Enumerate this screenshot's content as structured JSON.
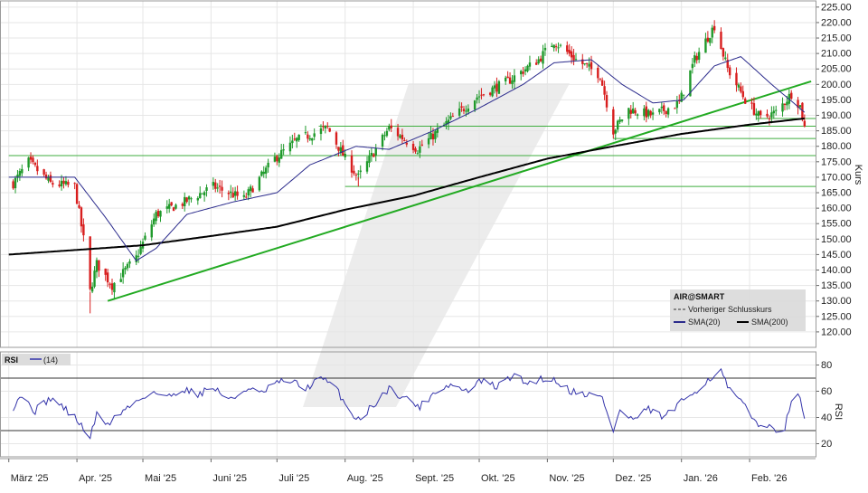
{
  "chart_data": [
    {
      "type": "candlestick",
      "title": "",
      "ylabel": "Kurs",
      "ylim": [
        115,
        227
      ],
      "y_ticks": [
        120,
        125,
        130,
        135,
        140,
        145,
        150,
        155,
        160,
        165,
        170,
        175,
        180,
        185,
        190,
        195,
        200,
        205,
        210,
        215,
        220,
        225
      ],
      "y_tick_labels": [
        "120.00",
        "125.00",
        "130.00",
        "135.00",
        "140.00",
        "145.00",
        "150.00",
        "155.00",
        "160.00",
        "165.00",
        "170.00",
        "175.00",
        "180.00",
        "185.00",
        "190.00",
        "195.00",
        "200.00",
        "205.00",
        "210.00",
        "215.00",
        "220.00",
        "225.00"
      ],
      "grid": true,
      "x_months": [
        "März '25",
        "Apr. '25",
        "Mai '25",
        "Juni '25",
        "Juli '25",
        "Aug. '25",
        "Sept. '25",
        "Okt. '25",
        "Nov. '25",
        "Dez. '25",
        "Jan. '26",
        "Feb. '26"
      ],
      "price_anchors": [
        [
          "2025-03-01",
          166
        ],
        [
          "2025-03-10",
          175
        ],
        [
          "2025-03-20",
          168
        ],
        [
          "2025-03-31",
          167
        ],
        [
          "2025-04-04",
          150
        ],
        [
          "2025-04-07",
          133
        ],
        [
          "2025-04-10",
          142
        ],
        [
          "2025-04-17",
          135
        ],
        [
          "2025-04-28",
          144
        ],
        [
          "2025-05-07",
          158
        ],
        [
          "2025-05-20",
          162
        ],
        [
          "2025-06-02",
          167
        ],
        [
          "2025-06-16",
          163
        ],
        [
          "2025-06-30",
          176
        ],
        [
          "2025-07-10",
          182
        ],
        [
          "2025-07-24",
          186
        ],
        [
          "2025-08-01",
          176
        ],
        [
          "2025-08-07",
          170
        ],
        [
          "2025-08-21",
          186
        ],
        [
          "2025-09-03",
          179
        ],
        [
          "2025-09-17",
          188
        ],
        [
          "2025-09-30",
          196
        ],
        [
          "2025-10-14",
          201
        ],
        [
          "2025-10-28",
          208
        ],
        [
          "2025-11-04",
          214
        ],
        [
          "2025-11-14",
          208
        ],
        [
          "2025-11-25",
          203
        ],
        [
          "2025-12-01",
          185
        ],
        [
          "2025-12-08",
          192
        ],
        [
          "2025-12-19",
          190
        ],
        [
          "2025-12-31",
          194
        ],
        [
          "2026-01-07",
          208
        ],
        [
          "2026-01-16",
          219
        ],
        [
          "2026-01-22",
          205
        ],
        [
          "2026-01-30",
          195
        ],
        [
          "2026-02-06",
          189
        ],
        [
          "2026-02-13",
          191
        ],
        [
          "2026-02-20",
          197
        ],
        [
          "2026-02-24",
          193
        ],
        [
          "2026-02-26",
          186
        ]
      ],
      "sma20_anchors": [
        [
          "2025-03-01",
          170
        ],
        [
          "2025-03-31",
          170
        ],
        [
          "2025-04-14",
          157
        ],
        [
          "2025-04-28",
          143
        ],
        [
          "2025-05-07",
          147
        ],
        [
          "2025-05-21",
          158
        ],
        [
          "2025-06-11",
          162
        ],
        [
          "2025-07-01",
          165
        ],
        [
          "2025-07-16",
          174
        ],
        [
          "2025-08-06",
          180
        ],
        [
          "2025-08-21",
          179
        ],
        [
          "2025-09-10",
          185
        ],
        [
          "2025-09-30",
          192
        ],
        [
          "2025-10-21",
          200
        ],
        [
          "2025-11-04",
          207
        ],
        [
          "2025-11-21",
          208
        ],
        [
          "2025-12-05",
          200
        ],
        [
          "2025-12-19",
          194
        ],
        [
          "2026-01-02",
          195
        ],
        [
          "2026-01-16",
          206
        ],
        [
          "2026-01-28",
          209
        ],
        [
          "2026-02-11",
          200
        ],
        [
          "2026-02-26",
          191
        ]
      ],
      "sma200_anchors": [
        [
          "2025-03-01",
          145
        ],
        [
          "2025-04-01",
          146.5
        ],
        [
          "2025-05-01",
          148
        ],
        [
          "2025-06-01",
          151
        ],
        [
          "2025-07-01",
          154
        ],
        [
          "2025-08-01",
          159.5
        ],
        [
          "2025-09-01",
          164
        ],
        [
          "2025-10-01",
          170
        ],
        [
          "2025-11-01",
          176
        ],
        [
          "2025-12-01",
          180
        ],
        [
          "2026-01-01",
          184
        ],
        [
          "2026-02-01",
          187
        ],
        [
          "2026-02-26",
          189
        ]
      ],
      "trendlines": [
        {
          "from": [
            "2025-04-15",
            130
          ],
          "to": [
            "2026-03-01",
            201
          ]
        }
      ],
      "horizontal_levels": [
        {
          "value": 177,
          "from": "2025-03-01"
        },
        {
          "value": 167,
          "from": "2025-08-01"
        },
        {
          "value": 182.5,
          "from": "2025-12-01"
        },
        {
          "value": 186.5,
          "from": "2025-07-20"
        },
        {
          "value": 189,
          "from": "2026-02-04"
        }
      ],
      "legend": {
        "position": "bottom-right",
        "title": "AIR@SMART",
        "items": [
          {
            "label": "Vorheriger Schlusskurs",
            "style": "dashed"
          },
          {
            "label": "SMA(20)",
            "color": "#2b2b8c"
          },
          {
            "label": "SMA(200)",
            "color": "#000000"
          }
        ]
      }
    },
    {
      "type": "line",
      "label": "RSI",
      "legend_label": "(14)",
      "ylabel": "RSI",
      "ylim": [
        10,
        90
      ],
      "y_ticks": [
        20,
        40,
        60,
        80
      ],
      "reference_lines": [
        30,
        70
      ],
      "rsi_anchors": [
        [
          "2025-03-01",
          42
        ],
        [
          "2025-03-06",
          57
        ],
        [
          "2025-03-13",
          45
        ],
        [
          "2025-03-20",
          55
        ],
        [
          "2025-03-27",
          46
        ],
        [
          "2025-04-01",
          38
        ],
        [
          "2025-04-07",
          25
        ],
        [
          "2025-04-10",
          42
        ],
        [
          "2025-04-15",
          35
        ],
        [
          "2025-04-21",
          44
        ],
        [
          "2025-04-28",
          52
        ],
        [
          "2025-05-05",
          60
        ],
        [
          "2025-05-12",
          55
        ],
        [
          "2025-05-19",
          62
        ],
        [
          "2025-05-26",
          58
        ],
        [
          "2025-06-02",
          63
        ],
        [
          "2025-06-10",
          53
        ],
        [
          "2025-06-17",
          62
        ],
        [
          "2025-06-24",
          58
        ],
        [
          "2025-06-30",
          66
        ],
        [
          "2025-07-07",
          68
        ],
        [
          "2025-07-14",
          62
        ],
        [
          "2025-07-21",
          70
        ],
        [
          "2025-07-28",
          62
        ],
        [
          "2025-08-04",
          42
        ],
        [
          "2025-08-08",
          39
        ],
        [
          "2025-08-14",
          50
        ],
        [
          "2025-08-21",
          62
        ],
        [
          "2025-08-28",
          55
        ],
        [
          "2025-09-04",
          48
        ],
        [
          "2025-09-11",
          60
        ],
        [
          "2025-09-18",
          65
        ],
        [
          "2025-09-25",
          60
        ],
        [
          "2025-10-02",
          68
        ],
        [
          "2025-10-09",
          63
        ],
        [
          "2025-10-16",
          72
        ],
        [
          "2025-10-23",
          66
        ],
        [
          "2025-10-30",
          70
        ],
        [
          "2025-11-05",
          68
        ],
        [
          "2025-11-12",
          60
        ],
        [
          "2025-11-19",
          58
        ],
        [
          "2025-11-26",
          55
        ],
        [
          "2025-12-01",
          30
        ],
        [
          "2025-12-04",
          45
        ],
        [
          "2025-12-10",
          38
        ],
        [
          "2025-12-17",
          46
        ],
        [
          "2025-12-24",
          40
        ],
        [
          "2025-12-31",
          50
        ],
        [
          "2026-01-07",
          60
        ],
        [
          "2026-01-14",
          70
        ],
        [
          "2026-01-19",
          75
        ],
        [
          "2026-01-23",
          60
        ],
        [
          "2026-01-28",
          52
        ],
        [
          "2026-02-03",
          38
        ],
        [
          "2026-02-09",
          32
        ],
        [
          "2026-02-13",
          31
        ],
        [
          "2026-02-17",
          33
        ],
        [
          "2026-02-20",
          50
        ],
        [
          "2026-02-24",
          57
        ],
        [
          "2026-02-26",
          40
        ]
      ]
    }
  ],
  "colors": {
    "candle_up": "#1f9a2b",
    "candle_down": "#d81e1e",
    "sma20": "#2b2b8c",
    "sma200": "#000000",
    "trendline": "#22aa22",
    "level": "#3fae3f",
    "rsi_line": "#3333aa",
    "grid": "#e6e6e6",
    "watermark": "#e6e6e6"
  }
}
